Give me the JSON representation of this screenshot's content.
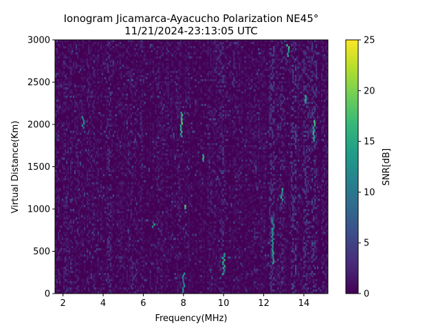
{
  "chart_data": {
    "type": "heatmap",
    "title_line1": "Ionogram Jicamarca-Ayacucho Polarization NE45°",
    "title_line2": "11/21/2024-23:13:05 UTC",
    "xlabel": "Frequency(MHz)",
    "ylabel": "Virtual Distance(Km)",
    "xlim": [
      1.6,
      15.2
    ],
    "ylim": [
      0,
      3000
    ],
    "xticks": [
      2,
      4,
      6,
      8,
      10,
      12,
      14
    ],
    "xtick_labels": [
      "2",
      "4",
      "6",
      "8",
      "10",
      "12",
      "14"
    ],
    "yticks": [
      0,
      500,
      1000,
      1500,
      2000,
      2500,
      3000
    ],
    "ytick_labels": [
      "0",
      "500",
      "1000",
      "1500",
      "2000",
      "2500",
      "3000"
    ],
    "colorbar": {
      "label": "SNR[dB]",
      "range": [
        0,
        25
      ],
      "ticks": [
        0,
        5,
        10,
        15,
        20,
        25
      ],
      "tick_labels": [
        "0",
        "5",
        "10",
        "15",
        "20",
        "25"
      ],
      "colormap": "viridis",
      "stops": [
        "#440154",
        "#482878",
        "#3e4989",
        "#31688e",
        "#26828e",
        "#1f9e89",
        "#35b779",
        "#6ece58",
        "#b5de2b",
        "#fde725"
      ]
    },
    "background_snr_db": 1,
    "noise_bands_mhz": [
      {
        "center": 4.3,
        "snr_db": 3
      },
      {
        "center": 9.9,
        "snr_db": 3
      },
      {
        "center": 12.4,
        "snr_db": 4
      },
      {
        "center": 12.9,
        "snr_db": 4
      },
      {
        "center": 13.5,
        "snr_db": 4
      },
      {
        "center": 14.1,
        "snr_db": 4
      },
      {
        "center": 14.5,
        "snr_db": 4
      }
    ],
    "echo_traces": [
      {
        "freq_mhz": 7.9,
        "dist_from_km": 1850,
        "dist_to_km": 2150,
        "snr_db": 18
      },
      {
        "freq_mhz": 8.05,
        "dist_from_km": 1000,
        "dist_to_km": 1050,
        "snr_db": 20
      },
      {
        "freq_mhz": 9.0,
        "dist_from_km": 1560,
        "dist_to_km": 1650,
        "snr_db": 17
      },
      {
        "freq_mhz": 6.5,
        "dist_from_km": 780,
        "dist_to_km": 830,
        "snr_db": 14
      },
      {
        "freq_mhz": 10.0,
        "dist_from_km": 220,
        "dist_to_km": 480,
        "snr_db": 15
      },
      {
        "freq_mhz": 12.45,
        "dist_from_km": 350,
        "dist_to_km": 900,
        "snr_db": 14
      },
      {
        "freq_mhz": 14.5,
        "dist_from_km": 1800,
        "dist_to_km": 2050,
        "snr_db": 17
      },
      {
        "freq_mhz": 13.2,
        "dist_from_km": 2800,
        "dist_to_km": 2950,
        "snr_db": 16
      },
      {
        "freq_mhz": 14.1,
        "dist_from_km": 2250,
        "dist_to_km": 2350,
        "snr_db": 15
      },
      {
        "freq_mhz": 12.9,
        "dist_from_km": 1100,
        "dist_to_km": 1250,
        "snr_db": 14
      },
      {
        "freq_mhz": 8.0,
        "dist_from_km": 0,
        "dist_to_km": 250,
        "snr_db": 12
      },
      {
        "freq_mhz": 3.0,
        "dist_from_km": 1950,
        "dist_to_km": 2100,
        "snr_db": 11
      }
    ]
  }
}
